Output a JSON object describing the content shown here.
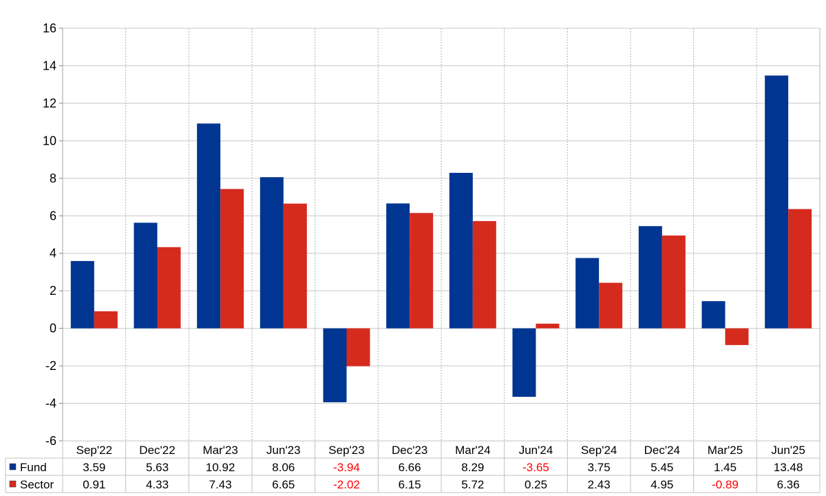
{
  "chart_data": {
    "type": "bar",
    "categories": [
      "Sep'22",
      "Dec'22",
      "Mar'23",
      "Jun'23",
      "Sep'23",
      "Dec'23",
      "Mar'24",
      "Jun'24",
      "Sep'24",
      "Dec'24",
      "Mar'25",
      "Jun'25"
    ],
    "series": [
      {
        "name": "Fund",
        "color": "#003591",
        "values": [
          3.59,
          5.63,
          10.92,
          8.06,
          -3.94,
          6.66,
          8.29,
          -3.65,
          3.75,
          5.45,
          1.45,
          13.48
        ]
      },
      {
        "name": "Sector",
        "color": "#d52b1e",
        "values": [
          0.91,
          4.33,
          7.43,
          6.65,
          -2.02,
          6.15,
          5.72,
          0.25,
          2.43,
          4.95,
          -0.89,
          6.36
        ]
      }
    ],
    "ylim": [
      -6,
      16
    ],
    "yticks": [
      -6,
      -4,
      -2,
      0,
      2,
      4,
      6,
      8,
      10,
      12,
      14,
      16
    ],
    "grid": true,
    "legend": "table-below",
    "negative_value_color": "#ff0000"
  }
}
